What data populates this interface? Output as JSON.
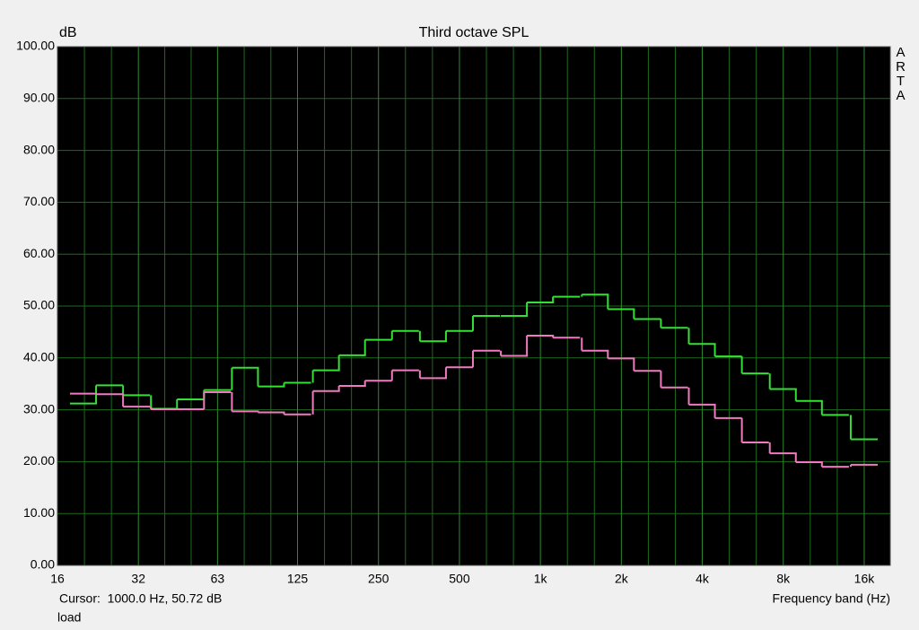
{
  "chart_data": {
    "type": "step",
    "title": "Third octave SPL",
    "y_label": "dB",
    "x_label": "Frequency band (Hz)",
    "watermark": "ARTA",
    "cursor_text": "Cursor:  1000.0 Hz, 50.72 dB",
    "footer": "load",
    "log_x": true,
    "grid": true,
    "x": [
      20,
      25,
      31.5,
      40,
      50,
      63,
      80,
      100,
      125,
      160,
      200,
      250,
      315,
      400,
      500,
      630,
      800,
      1000,
      1250,
      1600,
      2000,
      2500,
      3150,
      4000,
      5000,
      6300,
      8000,
      10000,
      12500,
      16000
    ],
    "series": [
      {
        "name": "green",
        "color": "#35e035",
        "values": [
          31.2,
          34.7,
          32.8,
          30.2,
          32.0,
          33.8,
          38.1,
          34.5,
          35.2,
          37.6,
          40.5,
          43.5,
          45.2,
          43.2,
          45.2,
          48.1,
          48.1,
          50.7,
          51.8,
          52.2,
          49.4,
          47.5,
          45.8,
          42.7,
          40.3,
          37.0,
          34.0,
          31.7,
          29.0,
          24.3
        ]
      },
      {
        "name": "pink",
        "color": "#f07ac0",
        "values": [
          33.1,
          33.0,
          30.6,
          30.1,
          30.1,
          33.4,
          29.7,
          29.5,
          29.1,
          33.6,
          34.6,
          35.6,
          37.6,
          36.1,
          38.2,
          41.4,
          40.4,
          44.3,
          43.9,
          41.4,
          39.9,
          37.5,
          34.3,
          31.0,
          28.4,
          23.7,
          21.6,
          19.9,
          19.0,
          19.4
        ]
      }
    ],
    "xlim": [
      16,
      20000
    ],
    "xticks": [
      16,
      32,
      63,
      125,
      250,
      500,
      {
        "value": 1000,
        "label": "1k"
      },
      {
        "value": 2000,
        "label": "2k"
      },
      {
        "value": 4000,
        "label": "4k"
      },
      {
        "value": 8000,
        "label": "8k"
      },
      {
        "value": 16000,
        "label": "16k"
      }
    ],
    "ylim": [
      0,
      100
    ],
    "yticks": [
      {
        "value": 0,
        "label": "0.00"
      },
      {
        "value": 10,
        "label": "10.00"
      },
      {
        "value": 20,
        "label": "20.00"
      },
      {
        "value": 30,
        "label": "30.00"
      },
      {
        "value": 40,
        "label": "40.00"
      },
      {
        "value": 50,
        "label": "50.00"
      },
      {
        "value": 60,
        "label": "60.00"
      },
      {
        "value": 70,
        "label": "70.00"
      },
      {
        "value": 80,
        "label": "80.00"
      },
      {
        "value": 90,
        "label": "90.00"
      },
      {
        "value": 100,
        "label": "100.00"
      }
    ]
  }
}
